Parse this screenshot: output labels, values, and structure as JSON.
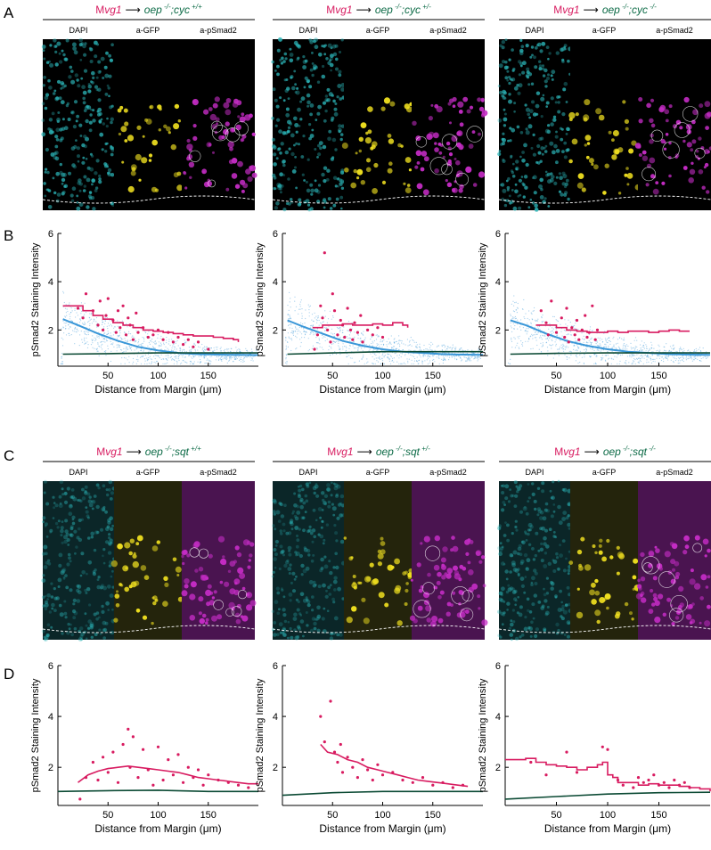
{
  "panel_letters": [
    "A",
    "B",
    "C",
    "D"
  ],
  "colors": {
    "magenta": "#d81b60",
    "green": "#0d6b47",
    "blue": "#3a97d8",
    "cyan": "#2bb5b8",
    "yellow": "#f0e020",
    "purple": "#c42cc4",
    "dark_green": "#0b4a34"
  },
  "image_rows": [
    {
      "id": "A",
      "dim_background": false,
      "panels": [
        {
          "source": "Mvg1",
          "target": "oep",
          "target_sup": "-/-",
          "gene": "cyc",
          "gene_sup": "+/+",
          "channels": [
            "DAPI",
            "a-GFP",
            "a-pSmad2"
          ]
        },
        {
          "source": "Mvg1",
          "target": "oep",
          "target_sup": "-/-",
          "gene": "cyc",
          "gene_sup": "+/-",
          "channels": [
            "DAPI",
            "a-GFP",
            "a-pSmad2"
          ]
        },
        {
          "source": "Mvg1",
          "target": "oep",
          "target_sup": "-/-",
          "gene": "cyc",
          "gene_sup": "-/-",
          "channels": [
            "DAPI",
            "a-GFP",
            "a-pSmad2"
          ]
        }
      ]
    },
    {
      "id": "C",
      "dim_background": true,
      "panels": [
        {
          "source": "Mvg1",
          "target": "oep",
          "target_sup": "-/-",
          "gene": "sqt",
          "gene_sup": "+/+",
          "channels": [
            "DAPI",
            "a-GFP",
            "a-pSmad2"
          ]
        },
        {
          "source": "Mvg1",
          "target": "oep",
          "target_sup": "-/-",
          "gene": "sqt",
          "gene_sup": "+/-",
          "channels": [
            "DAPI",
            "a-GFP",
            "a-pSmad2"
          ]
        },
        {
          "source": "Mvg1",
          "target": "oep",
          "target_sup": "-/-",
          "gene": "sqt",
          "gene_sup": "-/-",
          "channels": [
            "DAPI",
            "a-GFP",
            "a-pSmad2"
          ]
        }
      ]
    }
  ],
  "chart_data": [
    {
      "id": "B1",
      "type": "line",
      "xlabel": "Distance from Margin  (μm)",
      "ylabel": "pSmad2 Staining Intensity",
      "xlim": [
        0,
        200
      ],
      "ylim": [
        0.5,
        6
      ],
      "xticks": [
        50,
        100,
        150
      ],
      "yticks": [
        2,
        4,
        6
      ],
      "cloud": true,
      "series": [
        {
          "kind": "magenta_step",
          "x": [
            5,
            15,
            25,
            35,
            45,
            55,
            65,
            75,
            85,
            95,
            105,
            115,
            125,
            135,
            145,
            155,
            165,
            175,
            180
          ],
          "y": [
            3.0,
            3.0,
            2.8,
            2.6,
            2.45,
            2.3,
            2.2,
            2.1,
            2.0,
            1.95,
            1.9,
            1.85,
            1.8,
            1.75,
            1.75,
            1.7,
            1.65,
            1.6,
            1.5
          ]
        },
        {
          "kind": "blue",
          "x": [
            5,
            20,
            40,
            60,
            80,
            100,
            120,
            140,
            160,
            180,
            200
          ],
          "y": [
            2.45,
            2.2,
            1.85,
            1.55,
            1.3,
            1.15,
            1.05,
            1.0,
            0.98,
            0.97,
            0.96
          ]
        },
        {
          "kind": "green",
          "x": [
            5,
            50,
            100,
            150,
            200
          ],
          "y": [
            1.0,
            1.02,
            1.05,
            1.05,
            1.05
          ]
        }
      ],
      "points": {
        "x": [
          20,
          25,
          28,
          35,
          40,
          42,
          45,
          48,
          50,
          55,
          58,
          60,
          62,
          65,
          68,
          70,
          72,
          75,
          78,
          80,
          85,
          90,
          95,
          100,
          105,
          110,
          115,
          120,
          125,
          130,
          135,
          140,
          150
        ],
        "y": [
          2.9,
          2.5,
          3.5,
          2.8,
          2.2,
          3.2,
          2.0,
          2.6,
          3.3,
          2.4,
          1.9,
          2.8,
          2.1,
          3.0,
          1.8,
          2.5,
          2.2,
          1.6,
          2.7,
          1.9,
          2.1,
          1.7,
          1.8,
          2.0,
          1.6,
          1.9,
          1.5,
          1.7,
          1.4,
          1.6,
          1.3,
          1.5,
          1.2
        ]
      }
    },
    {
      "id": "B2",
      "type": "line",
      "xlabel": "Distance from Margin  (μm)",
      "ylabel": "pSmad2 Staining Intensity",
      "xlim": [
        0,
        200
      ],
      "ylim": [
        0.5,
        6
      ],
      "xticks": [
        50,
        100,
        150
      ],
      "yticks": [
        2,
        4,
        6
      ],
      "cloud": true,
      "series": [
        {
          "kind": "magenta_step",
          "x": [
            30,
            40,
            50,
            60,
            70,
            80,
            90,
            100,
            110,
            120,
            125
          ],
          "y": [
            2.1,
            2.2,
            2.2,
            2.25,
            2.2,
            2.2,
            2.25,
            2.2,
            2.3,
            2.2,
            2.1
          ]
        },
        {
          "kind": "blue",
          "x": [
            5,
            20,
            40,
            60,
            80,
            100,
            120,
            140,
            160,
            180,
            200
          ],
          "y": [
            2.4,
            2.15,
            1.85,
            1.55,
            1.35,
            1.2,
            1.1,
            1.05,
            1.0,
            0.98,
            0.97
          ]
        },
        {
          "kind": "green",
          "x": [
            5,
            50,
            100,
            150,
            200
          ],
          "y": [
            1.0,
            1.05,
            1.1,
            1.1,
            1.1
          ]
        }
      ],
      "points": {
        "x": [
          32,
          35,
          38,
          40,
          42,
          45,
          48,
          50,
          52,
          55,
          58,
          60,
          62,
          65,
          68,
          70,
          72,
          75,
          78,
          80,
          85,
          90,
          95,
          100
        ],
        "y": [
          1.2,
          1.8,
          3.0,
          2.5,
          5.2,
          2.0,
          1.5,
          3.5,
          2.8,
          1.8,
          2.4,
          2.2,
          1.7,
          2.9,
          2.0,
          1.6,
          2.3,
          1.9,
          2.6,
          1.5,
          2.0,
          1.8,
          2.1,
          1.7
        ]
      }
    },
    {
      "id": "B3",
      "type": "line",
      "xlabel": "Distance from Margin  (μm)",
      "ylabel": "pSmad2 Staining Intensity",
      "xlim": [
        0,
        200
      ],
      "ylim": [
        0.5,
        6
      ],
      "xticks": [
        50,
        100,
        150
      ],
      "yticks": [
        2,
        4,
        6
      ],
      "cloud": true,
      "series": [
        {
          "kind": "magenta_step",
          "x": [
            30,
            40,
            50,
            60,
            70,
            80,
            90,
            100,
            110,
            120,
            130,
            140,
            150,
            160,
            170,
            180
          ],
          "y": [
            2.2,
            2.2,
            2.1,
            2.0,
            1.95,
            1.9,
            1.9,
            1.95,
            1.9,
            1.95,
            1.95,
            1.9,
            1.95,
            2.0,
            1.95,
            1.95
          ]
        },
        {
          "kind": "blue",
          "x": [
            5,
            20,
            40,
            60,
            80,
            100,
            120,
            140,
            160,
            180,
            200
          ],
          "y": [
            2.4,
            2.2,
            1.85,
            1.55,
            1.35,
            1.2,
            1.1,
            1.05,
            1.0,
            0.98,
            0.97
          ]
        },
        {
          "kind": "green",
          "x": [
            5,
            50,
            100,
            150,
            200
          ],
          "y": [
            1.0,
            1.03,
            1.05,
            1.05,
            1.05
          ]
        }
      ],
      "points": {
        "x": [
          35,
          40,
          42,
          45,
          50,
          55,
          58,
          60,
          62,
          65,
          68,
          70,
          72,
          75,
          78,
          80,
          82,
          85,
          88,
          90
        ],
        "y": [
          2.8,
          2.3,
          1.8,
          3.2,
          1.9,
          2.5,
          1.7,
          2.9,
          1.5,
          2.1,
          1.8,
          2.4,
          1.6,
          2.0,
          2.6,
          1.7,
          1.9,
          3.0,
          1.6,
          2.0
        ]
      }
    },
    {
      "id": "D1",
      "type": "line",
      "xlabel": "Distance from Margin  (μm)",
      "ylabel": "pSmad2 Staining Intensity",
      "xlim": [
        0,
        200
      ],
      "ylim": [
        0.5,
        6
      ],
      "xticks": [
        50,
        100,
        150
      ],
      "yticks": [
        2,
        4,
        6
      ],
      "cloud": false,
      "series": [
        {
          "kind": "magenta",
          "x": [
            20,
            30,
            40,
            50,
            60,
            70,
            80,
            90,
            100,
            110,
            120,
            130,
            140,
            150,
            160,
            170,
            180,
            190,
            200
          ],
          "y": [
            1.4,
            1.7,
            1.85,
            1.95,
            2.0,
            2.05,
            2.0,
            1.95,
            1.9,
            1.85,
            1.8,
            1.7,
            1.6,
            1.55,
            1.5,
            1.45,
            1.4,
            1.35,
            1.35
          ]
        },
        {
          "kind": "green",
          "x": [
            0,
            50,
            100,
            150,
            200
          ],
          "y": [
            1.05,
            1.08,
            1.1,
            1.05,
            1.05
          ]
        }
      ],
      "points": {
        "x": [
          22,
          28,
          35,
          40,
          45,
          50,
          55,
          60,
          65,
          70,
          72,
          75,
          80,
          85,
          90,
          95,
          100,
          105,
          110,
          115,
          120,
          125,
          130,
          135,
          140,
          145,
          150,
          160,
          170,
          180,
          190
        ],
        "y": [
          0.75,
          1.6,
          2.2,
          1.5,
          2.4,
          1.8,
          2.6,
          1.4,
          2.9,
          3.5,
          2.0,
          3.2,
          1.6,
          2.7,
          1.9,
          1.3,
          2.8,
          1.5,
          2.3,
          1.7,
          2.5,
          1.4,
          2.0,
          1.6,
          1.9,
          1.3,
          1.7,
          1.5,
          1.4,
          1.3,
          1.2
        ]
      }
    },
    {
      "id": "D2",
      "type": "line",
      "xlabel": "Distance from Margin  (μm)",
      "ylabel": "pSmad2 Staining Intensity",
      "xlim": [
        0,
        200
      ],
      "ylim": [
        0.5,
        6
      ],
      "xticks": [
        50,
        100,
        150
      ],
      "yticks": [
        2,
        4,
        6
      ],
      "cloud": false,
      "series": [
        {
          "kind": "magenta",
          "x": [
            38,
            45,
            55,
            65,
            75,
            85,
            95,
            105,
            115,
            125,
            135,
            145,
            155,
            165,
            175,
            185
          ],
          "y": [
            2.9,
            2.6,
            2.5,
            2.3,
            2.2,
            2.0,
            1.9,
            1.8,
            1.7,
            1.6,
            1.5,
            1.45,
            1.4,
            1.35,
            1.3,
            1.25
          ]
        },
        {
          "kind": "green",
          "x": [
            0,
            50,
            100,
            150,
            200
          ],
          "y": [
            0.9,
            1.0,
            1.05,
            1.05,
            1.05
          ]
        }
      ],
      "points": {
        "x": [
          38,
          42,
          48,
          52,
          55,
          58,
          60,
          65,
          70,
          75,
          80,
          85,
          90,
          95,
          100,
          110,
          120,
          130,
          140,
          150,
          160,
          170,
          180
        ],
        "y": [
          4.0,
          3.0,
          4.6,
          2.6,
          2.2,
          2.9,
          1.8,
          2.4,
          2.0,
          1.6,
          2.3,
          1.9,
          1.5,
          2.1,
          1.7,
          1.8,
          1.5,
          1.4,
          1.6,
          1.3,
          1.4,
          1.2,
          1.3
        ]
      }
    },
    {
      "id": "D3",
      "type": "line",
      "xlabel": "Distance from Margin  (μm)",
      "ylabel": "pSmad2 Staining Intensity",
      "xlim": [
        0,
        200
      ],
      "ylim": [
        0.5,
        6
      ],
      "xticks": [
        50,
        100,
        150
      ],
      "yticks": [
        2,
        4,
        6
      ],
      "cloud": false,
      "series": [
        {
          "kind": "magenta_step",
          "x": [
            0,
            10,
            20,
            30,
            40,
            50,
            60,
            70,
            80,
            90,
            95,
            100,
            105,
            110,
            120,
            130,
            140,
            150,
            160,
            170,
            180,
            190,
            200
          ],
          "y": [
            2.3,
            2.3,
            2.35,
            2.2,
            2.1,
            2.05,
            2.0,
            1.9,
            2.0,
            2.1,
            2.2,
            1.7,
            1.6,
            1.4,
            1.4,
            1.3,
            1.35,
            1.3,
            1.3,
            1.25,
            1.2,
            1.15,
            1.05
          ]
        },
        {
          "kind": "green",
          "x": [
            0,
            50,
            100,
            150,
            200
          ],
          "y": [
            0.75,
            0.85,
            0.95,
            1.0,
            1.02
          ]
        }
      ],
      "points": {
        "x": [
          25,
          40,
          60,
          70,
          95,
          100,
          110,
          115,
          125,
          130,
          135,
          140,
          145,
          150,
          155,
          160,
          165,
          170,
          175,
          180
        ],
        "y": [
          2.2,
          1.7,
          2.6,
          1.8,
          2.8,
          2.7,
          1.5,
          1.3,
          1.2,
          1.6,
          1.4,
          1.5,
          1.7,
          1.3,
          1.4,
          1.2,
          1.5,
          1.3,
          1.4,
          1.2
        ]
      }
    }
  ]
}
